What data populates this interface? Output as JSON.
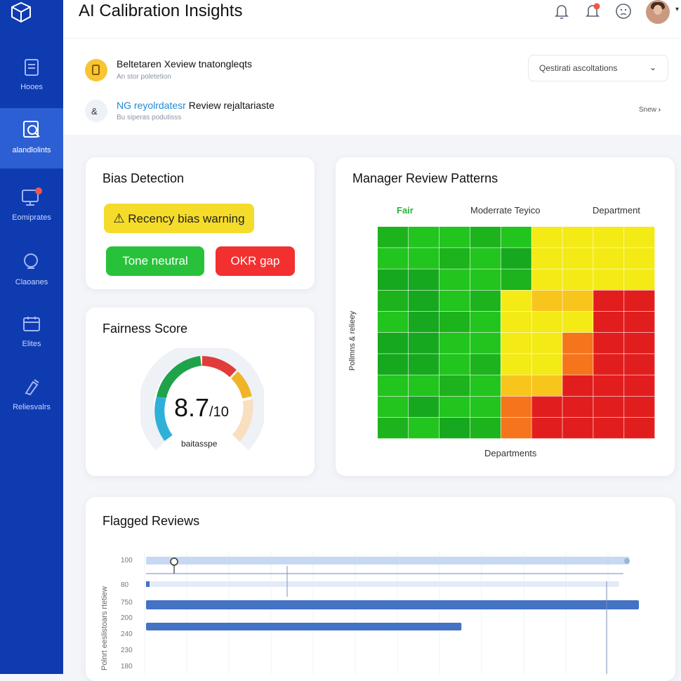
{
  "app": {
    "title": "AI Calibration Insights"
  },
  "sidebar": {
    "items": [
      {
        "label": "Hooes",
        "icon": "document-icon",
        "active": false
      },
      {
        "label": "alandlolints",
        "icon": "calibration-icon",
        "active": true
      },
      {
        "label": "Eomiprates",
        "icon": "monitor-icon",
        "active": false
      },
      {
        "label": "Claoanes",
        "icon": "shield-icon",
        "active": false
      },
      {
        "label": "Elites",
        "icon": "calendar-icon",
        "active": false
      },
      {
        "label": "Reliesvalrs",
        "icon": "tools-icon",
        "active": false
      }
    ]
  },
  "header": {
    "icons": [
      "bell-icon",
      "notification-bell-icon",
      "user-icon",
      "avatar"
    ]
  },
  "suggestions": {
    "items": [
      {
        "title": "Beltetaren Xeview tnatongleqts",
        "subtitle": "An stor poletetion",
        "icon": "lightbulb-icon"
      },
      {
        "title_prefix": "NG reyolrdatesr",
        "title": "Review rejaltariaste",
        "subtitle": "Bu siperas podutisss",
        "icon": "robot-icon"
      }
    ],
    "dropdown": {
      "label": "Qestirati ascoltations"
    },
    "show_link": "Snew"
  },
  "bias": {
    "title": "Bias Detection",
    "warning": "Recency bias warning",
    "tags": [
      "Tone neutral",
      "OKR gap"
    ]
  },
  "fairness": {
    "title": "Fairness Score",
    "value": "8.7",
    "max": "/10",
    "label": "baitasspe"
  },
  "chart_data": [
    {
      "type": "heatmap",
      "title": "Manager Review Patterns",
      "column_headers": [
        "Fair",
        "Moderrate Teyico",
        "Department"
      ],
      "xlabel": "Departments",
      "ylabel": "Pollmns & relieey",
      "colors": {
        "dark_green": "#16a81e",
        "green": "#22c41e",
        "yellow": "#f3ea16",
        "amber": "#f7c51c",
        "orange": "#f5741c",
        "red": "#e21d1d"
      },
      "values": [
        [
          1,
          1,
          1,
          1,
          1,
          3,
          3,
          3,
          3
        ],
        [
          1,
          1,
          1,
          1,
          0,
          3,
          3,
          3,
          3
        ],
        [
          0,
          0,
          1,
          1,
          1,
          3,
          3,
          3,
          3
        ],
        [
          1,
          0,
          1,
          1,
          3,
          4,
          4,
          6,
          6
        ],
        [
          1,
          0,
          1,
          1,
          3,
          3,
          3,
          6,
          6
        ],
        [
          0,
          0,
          1,
          1,
          3,
          3,
          5,
          6,
          6
        ],
        [
          0,
          0,
          1,
          1,
          3,
          3,
          5,
          6,
          6
        ],
        [
          1,
          1,
          1,
          1,
          4,
          4,
          6,
          6,
          6
        ],
        [
          1,
          0,
          1,
          1,
          5,
          6,
          6,
          6,
          6
        ],
        [
          1,
          1,
          0,
          1,
          5,
          6,
          6,
          6,
          6
        ]
      ]
    },
    {
      "type": "bar",
      "title": "Flagged Reviews",
      "ylabel": "Polnrt eeslistoars rtetiew",
      "categories": [
        "100",
        "80",
        "750",
        "200",
        "240",
        "230",
        "180"
      ],
      "values": [
        0.98,
        0.96,
        1.0,
        0.64,
        0,
        0,
        0
      ],
      "accent": "#4472c4"
    }
  ]
}
